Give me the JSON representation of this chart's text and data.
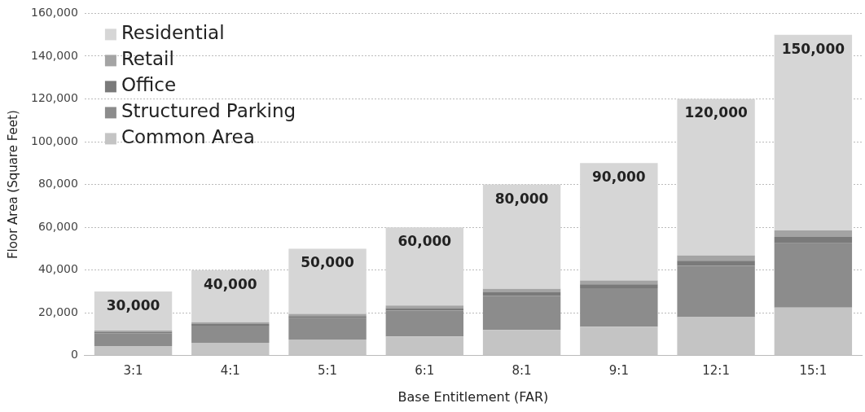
{
  "chart_data": {
    "type": "bar",
    "stacked": true,
    "xlabel": "Base Entitlement (FAR)",
    "ylabel": "Floor Area (Square Feet)",
    "categories": [
      "3:1",
      "4:1",
      "5:1",
      "6:1",
      "8:1",
      "9:1",
      "12:1",
      "15:1"
    ],
    "series": [
      {
        "name": "Common Area",
        "color": "#c4c4c4",
        "values": [
          4500,
          6000,
          7500,
          9000,
          12000,
          13500,
          18000,
          22500
        ]
      },
      {
        "name": "Structured Parking",
        "color": "#8c8c8c",
        "values": [
          6000,
          8000,
          10000,
          12000,
          16000,
          18000,
          24000,
          30000
        ]
      },
      {
        "name": "Office",
        "color": "#7a7a7a",
        "values": [
          600,
          800,
          1000,
          1200,
          1600,
          1800,
          2400,
          3000
        ]
      },
      {
        "name": "Retail",
        "color": "#a4a4a4",
        "values": [
          600,
          800,
          1000,
          1200,
          1600,
          1800,
          2400,
          3000
        ]
      },
      {
        "name": "Residential",
        "color": "#d6d6d6",
        "values": [
          18300,
          24400,
          30500,
          36600,
          48800,
          54900,
          73200,
          91500
        ]
      }
    ],
    "totals": [
      "30,000",
      "40,000",
      "50,000",
      "60,000",
      "80,000",
      "90,000",
      "120,000",
      "150,000"
    ],
    "ylim": [
      0,
      160000
    ],
    "yticks": [
      0,
      {
        "value": 20000,
        "label": "20,000"
      },
      {
        "value": 40000,
        "label": "40,000"
      },
      {
        "value": 60000,
        "label": "60,000"
      },
      {
        "value": 80000,
        "label": "80,000"
      },
      {
        "value": 100000,
        "label": "100,000"
      },
      {
        "value": 120000,
        "label": "120,000"
      },
      {
        "value": 140000,
        "label": "140,000"
      },
      {
        "value": 160000,
        "label": "160,000"
      }
    ],
    "grid": "y",
    "legend": "top left"
  }
}
